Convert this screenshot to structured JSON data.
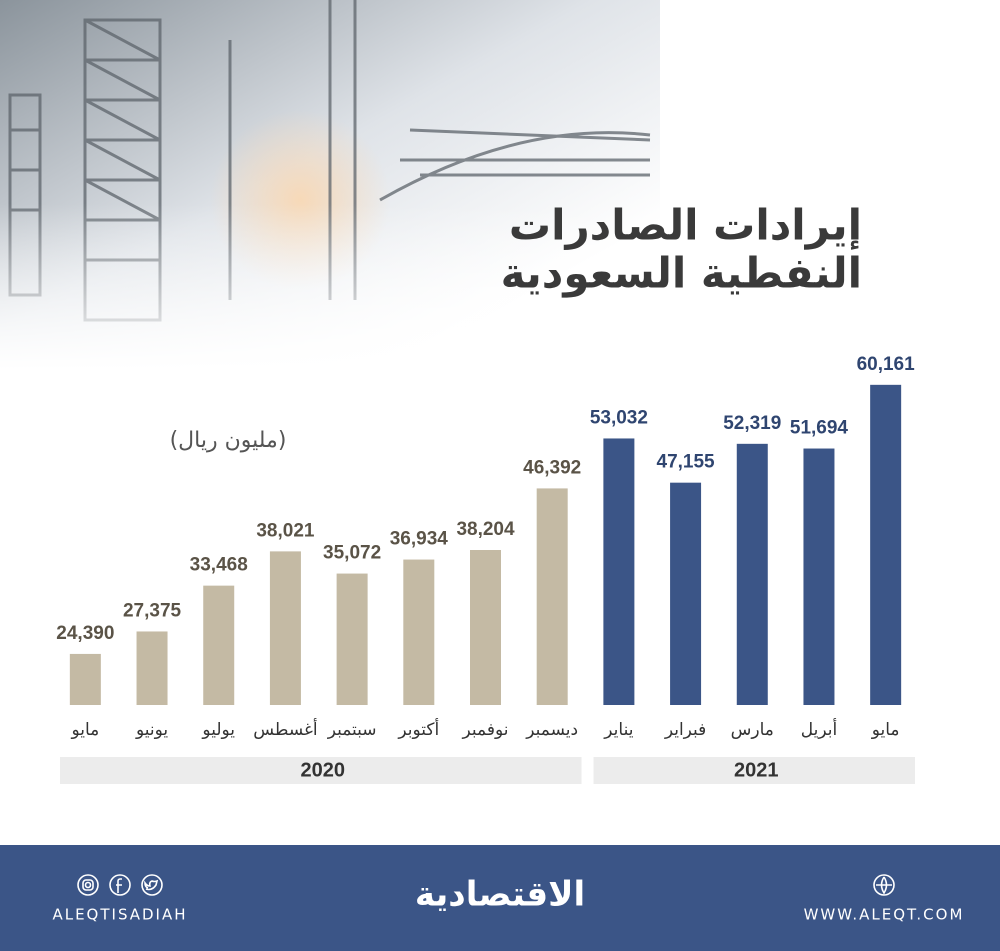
{
  "chart_data": {
    "type": "bar",
    "title": [
      "إيرادات الصادرات",
      "النفطية السعودية"
    ],
    "unit": "(مليون ريال)",
    "categories": [
      "مايو",
      "يونيو",
      "يوليو",
      "أغسطس",
      "سبتمبر",
      "أكتوبر",
      "نوفمبر",
      "ديسمبر",
      "يناير",
      "فبراير",
      "مارس",
      "أبريل",
      "مايو"
    ],
    "series": [
      {
        "name": "2020",
        "color": "#c4baa4",
        "label_color": "#5a5347",
        "values": [
          24390,
          27375,
          33468,
          38021,
          35072,
          36934,
          38204,
          46392,
          null,
          null,
          null,
          null,
          null
        ],
        "value_labels": [
          "24,390",
          "27,375",
          "33,468",
          "38,021",
          "35,072",
          "36,934",
          "38,204",
          "46,392",
          null,
          null,
          null,
          null,
          null
        ]
      },
      {
        "name": "2021",
        "color": "#3b5587",
        "label_color": "#2f4570",
        "values": [
          null,
          null,
          null,
          null,
          null,
          null,
          null,
          null,
          53032,
          47155,
          52319,
          51694,
          60161
        ],
        "value_labels": [
          null,
          null,
          null,
          null,
          null,
          null,
          null,
          null,
          "53,032",
          "47,155",
          "52,319",
          "51,694",
          "60,161"
        ]
      }
    ],
    "ylim": [
      17600,
      62000
    ]
  },
  "footer": {
    "brand": "الاقتصادية",
    "handle": "ALEQTISADIAH",
    "website": "WWW.ALEQT.COM"
  }
}
